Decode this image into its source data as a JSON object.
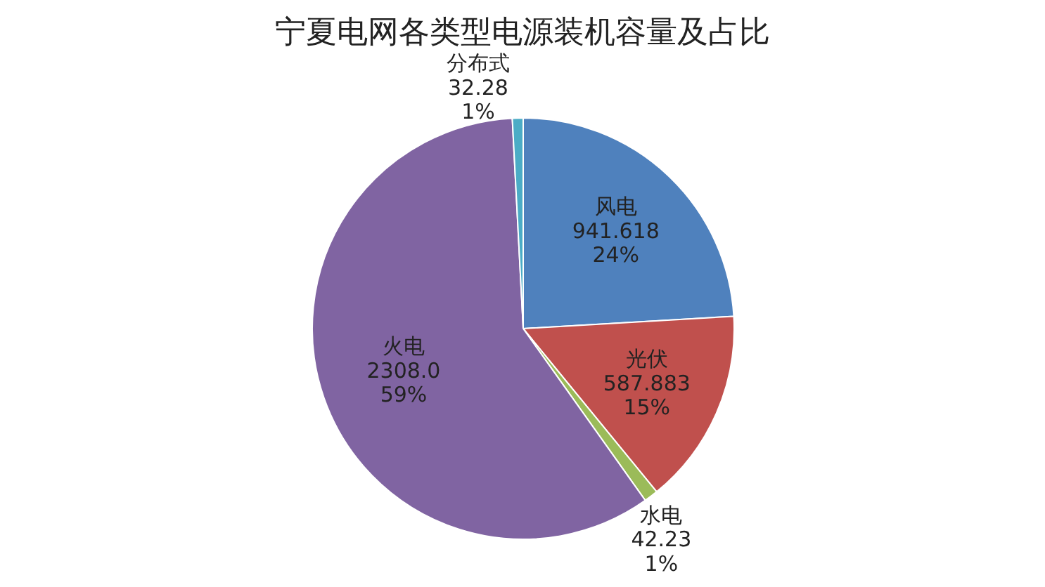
{
  "chart_data": {
    "type": "pie",
    "title": "宁夏电网各类型电源装机容量及占比",
    "categories": [
      "风电",
      "光伏",
      "水电",
      "火电",
      "分布式"
    ],
    "values": [
      941.618,
      587.883,
      42.23,
      2308.0,
      32.28
    ],
    "colors": [
      "#4f81bd",
      "#c0504d",
      "#9bbb59",
      "#8064a2",
      "#4bacc6"
    ],
    "value_labels": [
      "941.618\n24%",
      "587.883\n15%",
      "42.23\n1%",
      "2308.0\n59%",
      "32.28\n1%"
    ],
    "legend": false
  }
}
